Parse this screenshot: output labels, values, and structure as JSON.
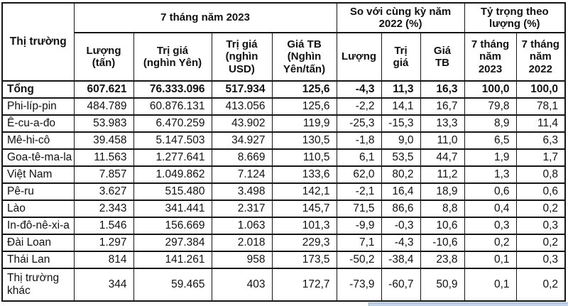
{
  "table": {
    "corner_header": "Thị trường",
    "groups": [
      {
        "label": "7 tháng năm 2023"
      },
      {
        "label": "So với cùng kỳ năm\n2022 (%)"
      },
      {
        "label": "Tỷ trọng theo\nlượng (%)"
      }
    ],
    "sub_headers": [
      "Lượng\n(tấn)",
      "Trị giá\n(nghìn Yên)",
      "Trị giá\n(nghìn\nUSD)",
      "Giá TB\n(Nghìn\nYên/tấn)",
      "Lượng",
      "Trị\ngiá",
      "Giá\nTB",
      "7 tháng\nnăm\n2023",
      "7 tháng\nnăm\n2022"
    ],
    "rows": [
      {
        "label": "Tổng",
        "bold": true,
        "values": [
          "607.621",
          "76.333.096",
          "517.934",
          "125,6",
          "-4,3",
          "11,3",
          "16,3",
          "100,0",
          "100,0"
        ]
      },
      {
        "label": "Phi-líp-pin",
        "bold": false,
        "values": [
          "484.789",
          "60.876.131",
          "413.056",
          "125,6",
          "-2,2",
          "14,1",
          "16,7",
          "79,8",
          "78,1"
        ]
      },
      {
        "label": "Ê-cu-a-đo",
        "bold": false,
        "values": [
          "53.983",
          "6.470.259",
          "43.902",
          "119,9",
          "-25,3",
          "-15,3",
          "13,3",
          "8,9",
          "11,4"
        ]
      },
      {
        "label": "Mê-hi-cô",
        "bold": false,
        "values": [
          "39.458",
          "5.147.503",
          "34.927",
          "130,5",
          "-1,8",
          "9,0",
          "11,0",
          "6,5",
          "6,3"
        ]
      },
      {
        "label": "Goa-tê-ma-la",
        "bold": false,
        "values": [
          "11.563",
          "1.277.641",
          "8.669",
          "110,5",
          "6,1",
          "53,5",
          "44,7",
          "1,9",
          "1,7"
        ]
      },
      {
        "label": "Việt Nam",
        "bold": false,
        "values": [
          "7.857",
          "1.049.862",
          "7.124",
          "133,6",
          "62,0",
          "80,2",
          "11,2",
          "1,3",
          "0,8"
        ]
      },
      {
        "label": "Pê-ru",
        "bold": false,
        "values": [
          "3.627",
          "515.480",
          "3.498",
          "142,1",
          "-2,1",
          "16,4",
          "18,9",
          "0,6",
          "0,6"
        ]
      },
      {
        "label": "Lào",
        "bold": false,
        "values": [
          "2.343",
          "341.441",
          "2.317",
          "145,7",
          "71,5",
          "86,6",
          "8,8",
          "0,4",
          "0,2"
        ]
      },
      {
        "label": "In-đô-nê-xi-a",
        "bold": false,
        "values": [
          "1.546",
          "156.669",
          "1.063",
          "101,3",
          "-9,9",
          "-0,3",
          "10,6",
          "0,3",
          "0,3"
        ]
      },
      {
        "label": "Đài Loan",
        "bold": false,
        "values": [
          "1.297",
          "297.384",
          "2.018",
          "229,3",
          "7,1",
          "-4,3",
          "-10,6",
          "0,2",
          "0,2"
        ]
      },
      {
        "label": "Thái Lan",
        "bold": false,
        "values": [
          "814",
          "141.261",
          "958",
          "173,5",
          "-50,2",
          "-38,4",
          "23,8",
          "0,1",
          "0,3"
        ]
      },
      {
        "label": "Thị trường khác",
        "bold": false,
        "tall": true,
        "values": [
          "344",
          "59.465",
          "403",
          "172,7",
          "-73,9",
          "-60,7",
          "50,9",
          "0,1",
          "0,2"
        ]
      }
    ]
  },
  "scrollbar": {
    "color": "#c3d2e5"
  }
}
